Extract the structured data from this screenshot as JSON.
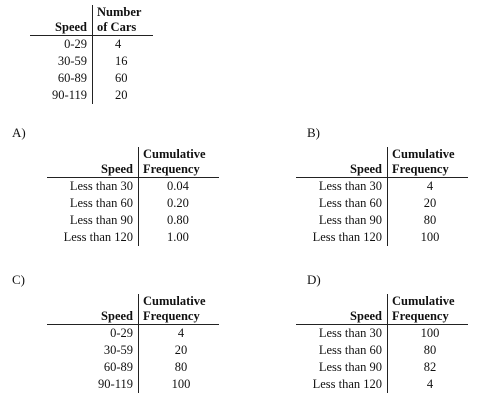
{
  "original": {
    "header_left": "Speed",
    "header_right_line1": "Number",
    "header_right_line2": "of Cars",
    "rows": [
      {
        "speed": "0-29",
        "value": "4"
      },
      {
        "speed": "30-59",
        "value": "16"
      },
      {
        "speed": "60-89",
        "value": "60"
      },
      {
        "speed": "90-119",
        "value": "20"
      }
    ]
  },
  "options": [
    {
      "label": "A)",
      "header_left": "Speed",
      "header_right_line1": "Cumulative",
      "header_right_line2": "Frequency",
      "rows": [
        {
          "speed": "Less than 30",
          "value": "0.04"
        },
        {
          "speed": "Less than 60",
          "value": "0.20"
        },
        {
          "speed": "Less than 90",
          "value": "0.80"
        },
        {
          "speed": "Less than 120",
          "value": "1.00"
        }
      ]
    },
    {
      "label": "B)",
      "header_left": "Speed",
      "header_right_line1": "Cumulative",
      "header_right_line2": "Frequency",
      "rows": [
        {
          "speed": "Less than 30",
          "value": "4"
        },
        {
          "speed": "Less than 60",
          "value": "20"
        },
        {
          "speed": "Less than 90",
          "value": "80"
        },
        {
          "speed": "Less than 120",
          "value": "100"
        }
      ]
    },
    {
      "label": "C)",
      "header_left": "Speed",
      "header_right_line1": "Cumulative",
      "header_right_line2": "Frequency",
      "rows": [
        {
          "speed": "0-29",
          "value": "4"
        },
        {
          "speed": "30-59",
          "value": "20"
        },
        {
          "speed": "60-89",
          "value": "80"
        },
        {
          "speed": "90-119",
          "value": "100"
        }
      ]
    },
    {
      "label": "D)",
      "header_left": "Speed",
      "header_right_line1": "Cumulative",
      "header_right_line2": "Frequency",
      "rows": [
        {
          "speed": "Less than 30",
          "value": "100"
        },
        {
          "speed": "Less than 60",
          "value": "80"
        },
        {
          "speed": "Less than 90",
          "value": "82"
        },
        {
          "speed": "Less than 120",
          "value": "4"
        }
      ]
    }
  ]
}
